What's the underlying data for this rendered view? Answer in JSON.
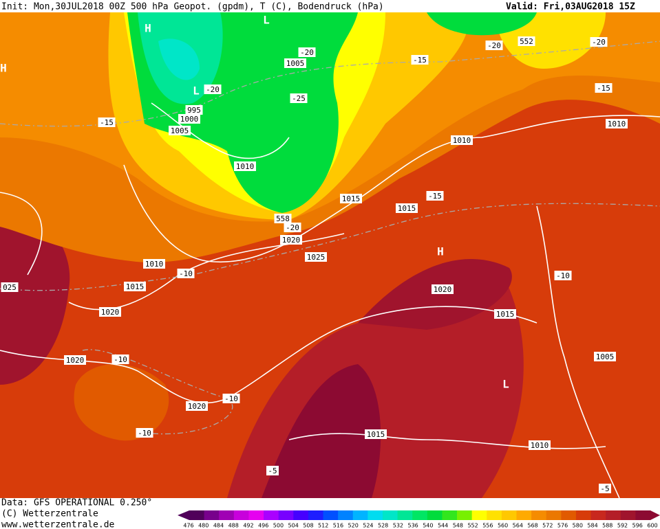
{
  "header": {
    "init": "Init: Mon,30JUL2018 00Z 500 hPa Geopot. (gpdm), T (C), Bodendruck (hPa)",
    "valid": "Valid: Fri,03AUG2018 15Z"
  },
  "map": {
    "labels": [
      "995",
      "1000",
      "1005",
      "1005",
      "-20",
      "-25",
      "-20",
      "1010",
      "-15",
      "1015",
      "558",
      "-20",
      "1020",
      "1010",
      "1025",
      "1015",
      "-10",
      "1020",
      "1020",
      "-10",
      "1020",
      "-10",
      "-10",
      "1015",
      "-5",
      "1010",
      "-5",
      "1005",
      "1015",
      "1020",
      "-10",
      "1015",
      "-15",
      "1010",
      "1010",
      "-15",
      "-20",
      "552",
      "-20",
      "-15",
      "025"
    ],
    "centers": [
      "H",
      "L",
      "H",
      "L",
      "L",
      "H"
    ]
  },
  "footer": {
    "data": "Data: GFS OPERATIONAL 0.250°",
    "copyright": "(C) Wetterzentrale",
    "url": "www.wetterzentrale.de"
  },
  "colorbar": {
    "labels": [
      "476",
      "480",
      "484",
      "488",
      "492",
      "496",
      "500",
      "504",
      "508",
      "512",
      "516",
      "520",
      "524",
      "528",
      "532",
      "536",
      "540",
      "544",
      "548",
      "552",
      "556",
      "560",
      "564",
      "568",
      "572",
      "576",
      "580",
      "584",
      "588",
      "592",
      "596",
      "600"
    ],
    "colors": [
      "#50005a",
      "#78008c",
      "#a000b4",
      "#c800dc",
      "#e600f0",
      "#aa00ff",
      "#7800ff",
      "#4600ff",
      "#1e1eff",
      "#0050ff",
      "#0082ff",
      "#00b4ff",
      "#00dcf0",
      "#00e6c8",
      "#00e696",
      "#00e664",
      "#00dc3c",
      "#32e61e",
      "#78f000",
      "#ffff00",
      "#ffe100",
      "#ffc800",
      "#ffaa00",
      "#f58c00",
      "#eb7800",
      "#e15a00",
      "#d73c0a",
      "#c8281e",
      "#b41e28",
      "#a0142d",
      "#8c0a32"
    ]
  }
}
